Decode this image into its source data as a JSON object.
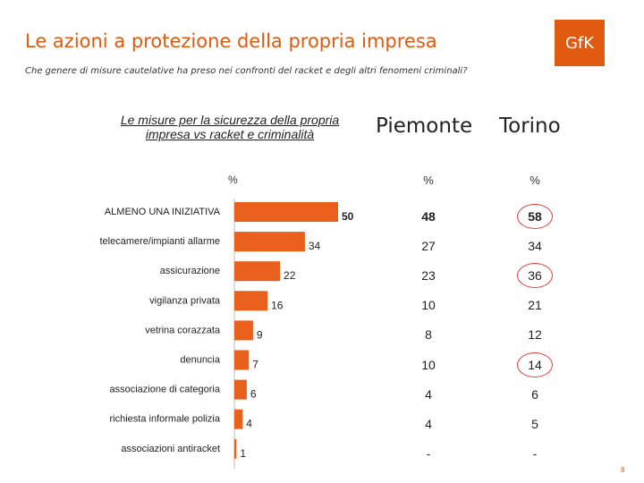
{
  "title": "Le azioni a protezione della  propria impresa",
  "subtitle": "Che genere di misure cautelative ha preso nei confronti del racket e degli altri fenomeni  criminali?",
  "logo_text": "GfK",
  "page_number": "8",
  "colors": {
    "accent": "#e05a10",
    "bar": "#e8601c",
    "ring": "#e83a3a"
  },
  "columns": {
    "piemonte": "Piemonte",
    "torino": "Torino",
    "percent": "%"
  },
  "chart_data": {
    "type": "bar",
    "orientation": "horizontal",
    "title": "Le misure per la sicurezza della propria impresa vs racket e criminalità",
    "unit_label": "%",
    "categories": [
      "ALMENO UNA INIZIATIVA",
      "telecamere/impianti allarme",
      "assicurazione",
      "vigilanza privata",
      "vetrina corazzata",
      "denuncia",
      "associazione di categoria",
      "richiesta informale polizia",
      "associazioni antiracket"
    ],
    "values": [
      50,
      34,
      22,
      16,
      9,
      7,
      6,
      4,
      1
    ],
    "xlim": [
      0,
      50
    ],
    "bold_first_label": true
  },
  "table": {
    "piemonte": [
      "48",
      "27",
      "23",
      "10",
      "8",
      "10",
      "4",
      "4",
      "-"
    ],
    "torino": [
      "58",
      "34",
      "36",
      "21",
      "12",
      "14",
      "6",
      "5",
      "-"
    ],
    "bold_row": 0,
    "circled_torino_rows": [
      0,
      2,
      5
    ]
  }
}
